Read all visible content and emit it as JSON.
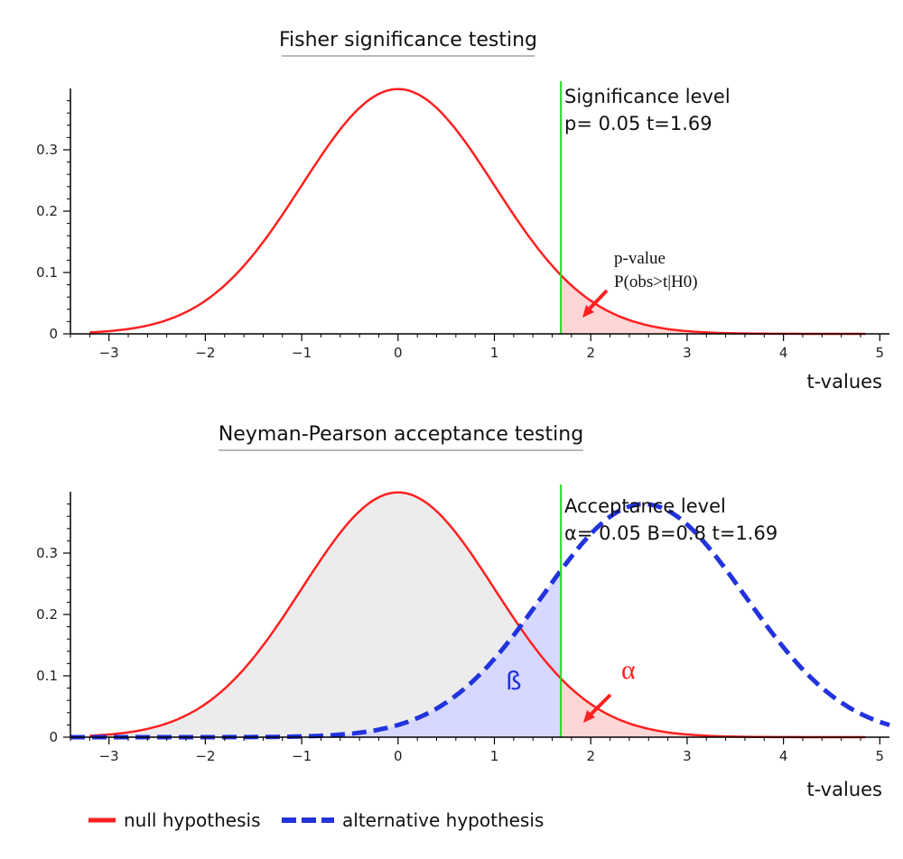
{
  "colors": {
    "null_curve": "#ff2020",
    "alt_curve": "#2233dd",
    "sig_line": "#22dd22",
    "alpha_fill": "#ffd6d6",
    "beta_fill": "#d6d8ff",
    "accept_fill": "#ececec",
    "axis": "#000000"
  },
  "chart_data": [
    {
      "type": "line",
      "title": "Fisher significance testing",
      "xlabel": "t-values",
      "ylabel": "",
      "xlim": [
        -3.4,
        5.1
      ],
      "ylim": [
        0,
        0.4
      ],
      "x_ticks": [
        "-3",
        "-2",
        "-1",
        "0",
        "1",
        "2",
        "3",
        "4",
        "5"
      ],
      "y_ticks": [
        "0",
        "0.1",
        "0.2",
        "0.3"
      ],
      "grid": false,
      "series": [
        {
          "name": "null hypothesis",
          "distribution": "normal",
          "mean": 0,
          "sd": 1,
          "x_range": [
            -3.2,
            4.85
          ]
        }
      ],
      "threshold": {
        "x": 1.69
      },
      "shaded_regions": [
        {
          "x_from": 1.69,
          "x_to": 4.85,
          "under": "null hypothesis"
        }
      ],
      "annotations": {
        "level_title": "Significance level",
        "level_values": "p= 0.05 t=1.69",
        "pvalue_title": "p-value",
        "pvalue_formula": "P(obs>t|H0)"
      }
    },
    {
      "type": "line",
      "title": "Neyman-Pearson acceptance testing",
      "xlabel": "t-values",
      "ylabel": "",
      "xlim": [
        -3.4,
        5.1
      ],
      "ylim": [
        0,
        0.4
      ],
      "x_ticks": [
        "-3",
        "-2",
        "-1",
        "0",
        "1",
        "2",
        "3",
        "4",
        "5"
      ],
      "y_ticks": [
        "0",
        "0.1",
        "0.2",
        "0.3"
      ],
      "grid": false,
      "series": [
        {
          "name": "null hypothesis",
          "distribution": "normal",
          "mean": 0,
          "sd": 1,
          "x_range": [
            -3.2,
            4.85
          ]
        },
        {
          "name": "alternative hypothesis",
          "distribution": "normal",
          "mean": 2.55,
          "sd": 1.05,
          "x_range": [
            -3.4,
            5.1
          ]
        }
      ],
      "threshold": {
        "x": 1.69
      },
      "shaded_regions": [
        {
          "x_from": -3.2,
          "x_to": 1.69,
          "under": "null hypothesis"
        },
        {
          "x_from": -3.4,
          "x_to": 1.69,
          "under": "alternative hypothesis"
        },
        {
          "x_from": 1.69,
          "x_to": 4.85,
          "under": "null hypothesis"
        }
      ],
      "annotations": {
        "level_title": "Acceptance level",
        "level_values": "α= 0.05 Β=0.8 t=1.69",
        "alpha_label": "α",
        "beta_label": "ß"
      }
    }
  ],
  "legend": {
    "placement": "bottom-left",
    "items": [
      "null hypothesis",
      "alternative hypothesis"
    ]
  }
}
